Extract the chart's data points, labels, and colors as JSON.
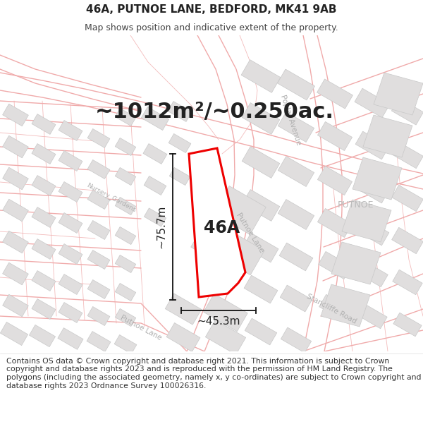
{
  "title_line1": "46A, PUTNOE LANE, BEDFORD, MK41 9AB",
  "title_line2": "Map shows position and indicative extent of the property.",
  "area_text": "~1012m²/~0.250ac.",
  "label_46a": "46A",
  "dim_vertical": "~75.7m",
  "dim_horizontal": "~45.3m",
  "footnote": "Contains OS data © Crown copyright and database right 2021. This information is subject to Crown copyright and database rights 2023 and is reproduced with the permission of HM Land Registry. The polygons (including the associated geometry, namely x, y co-ordinates) are subject to Crown copyright and database rights 2023 Ordnance Survey 100026316.",
  "bg_color": "#ffffff",
  "map_bg": "#f9f6f6",
  "road_color": "#f0aaaa",
  "road_fill": "#fce8e8",
  "building_color": "#e0dede",
  "building_edge": "#c8c8c8",
  "property_color": "#ee0000",
  "dim_line_color": "#111111",
  "text_dark": "#222222",
  "street_label_color": "#b0b0b0",
  "place_label_color": "#c0c0c0",
  "title_fontsize": 11,
  "subtitle_fontsize": 9,
  "area_fontsize": 22,
  "label_fontsize": 17,
  "dim_fontsize": 11,
  "footnote_fontsize": 7.8
}
